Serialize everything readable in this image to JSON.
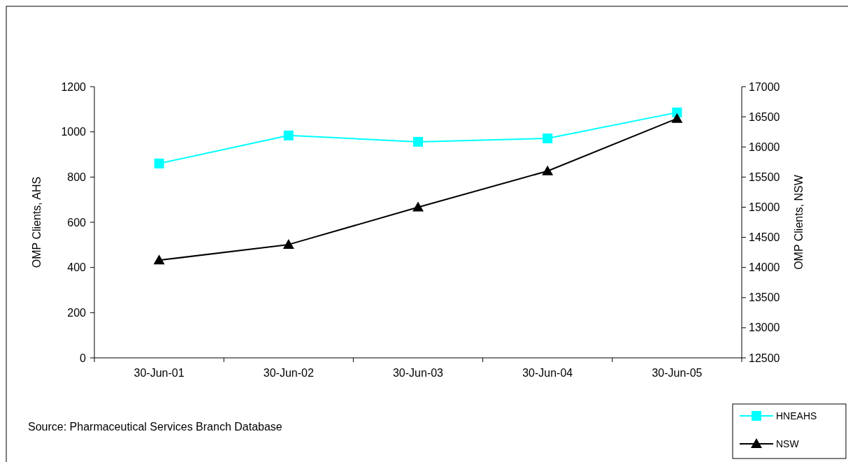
{
  "chart_data": {
    "type": "line",
    "categories": [
      "30-Jun-01",
      "30-Jun-02",
      "30-Jun-03",
      "30-Jun-04",
      "30-Jun-05"
    ],
    "series": [
      {
        "name": "HNEAHS",
        "color": "#00ffff",
        "marker": "square",
        "values": [
          860,
          984,
          956,
          971,
          1086
        ]
      },
      {
        "name": "NSW",
        "color": "#000000",
        "marker": "triangle",
        "axis": "y2",
        "values": [
          14120,
          14380,
          15000,
          15600,
          16470
        ]
      }
    ],
    "ylabel": "OMP Clients, AHS",
    "y2label": "OMP Clients, NSW",
    "ylim": [
      0,
      1200
    ],
    "yticks": [
      0,
      200,
      400,
      600,
      800,
      1000,
      1200
    ],
    "y2lim": [
      12500,
      17000
    ],
    "y2ticks": [
      12500,
      13000,
      13500,
      14000,
      14500,
      15000,
      15500,
      16000,
      16500,
      17000
    ],
    "grid": false,
    "legend": "bottom right",
    "line_style": "solid",
    "annotations": [
      "Source:  Pharmaceutical Services Branch Database"
    ]
  }
}
